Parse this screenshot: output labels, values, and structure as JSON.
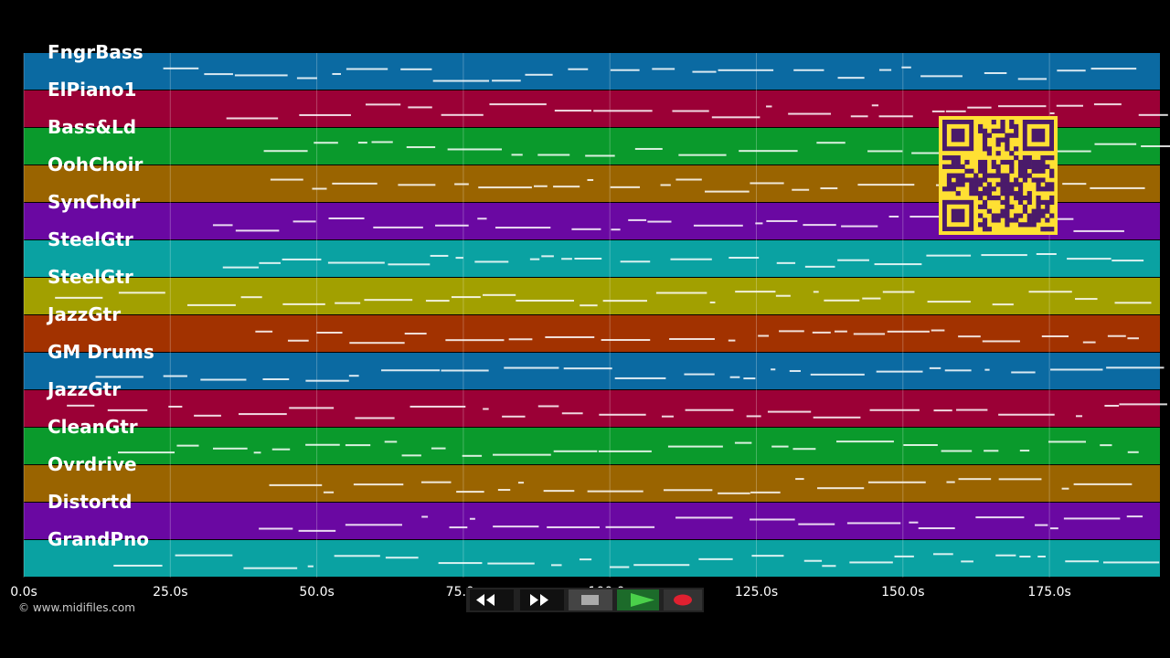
{
  "tracks": [
    {
      "name": "FngrBass",
      "color": "#0b6aa2"
    },
    {
      "name": "ElPiano1",
      "color": "#9b0036"
    },
    {
      "name": "Bass&Ld",
      "color": "#0a9a2c"
    },
    {
      "name": "OohChoir",
      "color": "#9a6400"
    },
    {
      "name": "SynChoir",
      "color": "#6a08a2"
    },
    {
      "name": "SteelGtr",
      "color": "#0aa2a2"
    },
    {
      "name": "SteelGtr",
      "color": "#a2a000"
    },
    {
      "name": "JazzGtr",
      "color": "#a23200"
    },
    {
      "name": "GM Drums",
      "color": "#0b6aa2"
    },
    {
      "name": "JazzGtr",
      "color": "#9b0036"
    },
    {
      "name": "CleanGtr",
      "color": "#0a9a2c"
    },
    {
      "name": "Ovrdrive",
      "color": "#9a6400"
    },
    {
      "name": "Distortd",
      "color": "#6a08a2"
    },
    {
      "name": "GrandPno",
      "color": "#0aa2a2"
    }
  ],
  "time_axis": {
    "ticks": [
      "0.0s",
      "25.0s",
      "50.0s",
      "75.0s",
      "100.0s",
      "125.0s",
      "150.0s",
      "175.0s"
    ]
  },
  "credit": "© www.midifiles.com"
}
